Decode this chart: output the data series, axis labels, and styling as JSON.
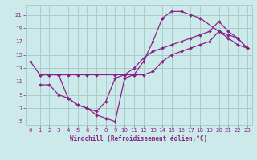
{
  "bg_color": "#cceaea",
  "grid_color": "#aacccc",
  "line_color": "#882288",
  "xlabel": "Windchill (Refroidissement éolien,°C)",
  "xlim": [
    -0.5,
    23.5
  ],
  "ylim": [
    4.5,
    22.5
  ],
  "xticks": [
    0,
    1,
    2,
    3,
    4,
    5,
    6,
    7,
    8,
    9,
    10,
    11,
    12,
    13,
    14,
    15,
    16,
    17,
    18,
    19,
    20,
    21,
    22,
    23
  ],
  "yticks": [
    5,
    7,
    9,
    11,
    13,
    15,
    17,
    19,
    21
  ],
  "line1_x": [
    0,
    1,
    2,
    3,
    4,
    5,
    6,
    7,
    8,
    9,
    10,
    11,
    12,
    13,
    14,
    15,
    16,
    17,
    18,
    20,
    21,
    22,
    23
  ],
  "line1_y": [
    14,
    12,
    12,
    12,
    8.5,
    7.5,
    7,
    6,
    5.5,
    5,
    11.5,
    12,
    14,
    17,
    20.5,
    21.5,
    21.5,
    21,
    20.5,
    18.5,
    17.5,
    16.5,
    16
  ],
  "line2_x": [
    1,
    2,
    3,
    4,
    5,
    6,
    7,
    9,
    10,
    11,
    12,
    13,
    14,
    15,
    16,
    17,
    18,
    19,
    20,
    21,
    22,
    23
  ],
  "line2_y": [
    12,
    12,
    12,
    12,
    12,
    12,
    12,
    12,
    12,
    13,
    14.5,
    15.5,
    16,
    16.5,
    17,
    17.5,
    18,
    18.5,
    20,
    18.5,
    17.5,
    16
  ],
  "line3_x": [
    1,
    2,
    3,
    4,
    5,
    6,
    7,
    8,
    9,
    10,
    11,
    12,
    13,
    14,
    15,
    16,
    17,
    18,
    19,
    20,
    21,
    22,
    23
  ],
  "line3_y": [
    10.5,
    10.5,
    9,
    8.5,
    7.5,
    7,
    6.5,
    8,
    11.5,
    12,
    12,
    12,
    12.5,
    14,
    15,
    15.5,
    16,
    16.5,
    17,
    18.5,
    18,
    17.5,
    16
  ]
}
